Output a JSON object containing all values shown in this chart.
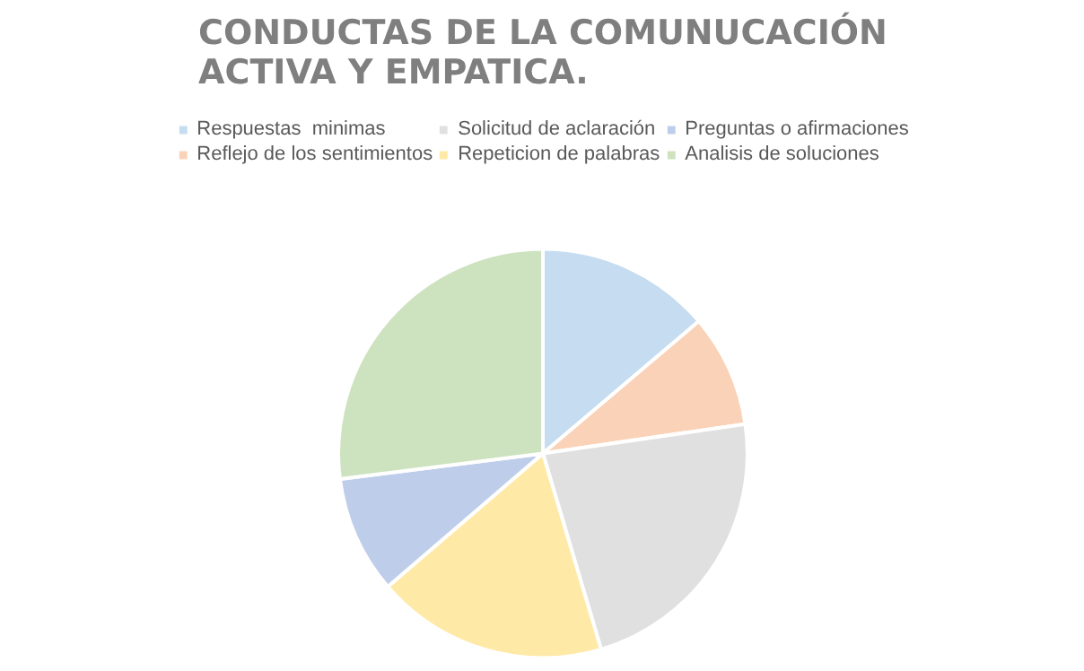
{
  "chart_data": {
    "type": "pie",
    "title": "CONDUCTAS DE LA COMUNUCACIÓN ACTIVA Y EMPATICA.",
    "categories": [
      "Respuestas  minimas",
      "Reflejo de los sentimientos",
      "Solicitud de aclaración",
      "Repeticion de palabras",
      "Preguntas o afirmaciones",
      "Analisis de soluciones"
    ],
    "values": [
      13.8,
      8.9,
      22.7,
      18.3,
      9.3,
      27.0
    ],
    "colors": [
      "#5b9bd5",
      "#ed7d31",
      "#a5a5a5",
      "#ffc000",
      "#4472c4",
      "#70ad47"
    ],
    "legend": "top"
  }
}
